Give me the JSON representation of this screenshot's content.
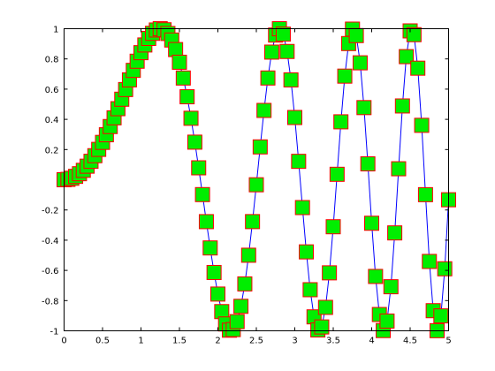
{
  "chart_data": {
    "type": "line",
    "title": "",
    "xlabel": "",
    "ylabel": "",
    "xlim": [
      0,
      5
    ],
    "ylim": [
      -1,
      1
    ],
    "grid": false,
    "legend": "none",
    "x_ticks": [
      "0",
      "0.5",
      "1",
      "1.5",
      "2",
      "2.5",
      "3",
      "3.5",
      "4",
      "4.5",
      "5"
    ],
    "y_ticks": [
      "-1",
      "-0.8",
      "-0.6",
      "-0.4",
      "-0.2",
      "0.2",
      "0.4",
      "0.6",
      "0.8",
      "1"
    ],
    "x_tick_values": [
      0,
      0.5,
      1,
      1.5,
      2,
      2.5,
      3,
      3.5,
      4,
      4.5,
      5
    ],
    "y_tick_values": [
      -1,
      -0.8,
      -0.6,
      -0.4,
      -0.2,
      0.2,
      0.4,
      0.6,
      0.8,
      1
    ],
    "series": [
      {
        "function": "sin(x^2)",
        "x_start": 0,
        "x_end": 5,
        "num_points": 101,
        "line_color": "#0000ff",
        "marker": "square",
        "marker_face_color": "#00ee00",
        "marker_edge_color": "#ff0000"
      }
    ]
  }
}
